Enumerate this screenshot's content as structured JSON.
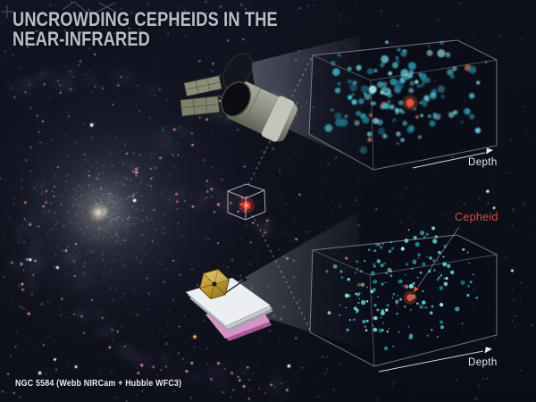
{
  "title": {
    "line1": "UNCROWDING CEPHEIDS IN THE",
    "line2": "NEAR-INFRARED"
  },
  "caption": "NGC 5584 (Webb NIRCam + Hubble WFC3)",
  "colors": {
    "title_text": "#b9bdc7",
    "caption_text": "#ecedef",
    "depth_text": "#e7e9ef",
    "cepheid_text": "#d8503a",
    "cepheid_dot": "#e2573a",
    "target_dot": "#ff3b2e",
    "box_stroke": "#c3c9d6"
  },
  "views": {
    "hubble": {
      "depth_label": "Depth",
      "star_count": 135,
      "dot_radius_min": 1.7,
      "dot_radius_max": 4.6,
      "dot_opacity_min": 0.45,
      "dot_palette": [
        "#9fe6ec",
        "#6fd2de",
        "#45b3c4",
        "#2b8ea1",
        "#1d6c80",
        "#5bc4d2"
      ],
      "warm_dot_color": "#cf7a5e",
      "seed": 7
    },
    "webb": {
      "depth_label": "Depth",
      "cepheid_label": "Cepheid",
      "star_count": 170,
      "dot_radius_min": 0.8,
      "dot_radius_max": 2.7,
      "dot_opacity_min": 0.5,
      "dot_palette": [
        "#aef2f6",
        "#7de4ec",
        "#52cdd9",
        "#35aebd",
        "#23879a",
        "#68dbe5"
      ],
      "warm_dot_color": "#d98a6a",
      "seed": 13
    }
  }
}
